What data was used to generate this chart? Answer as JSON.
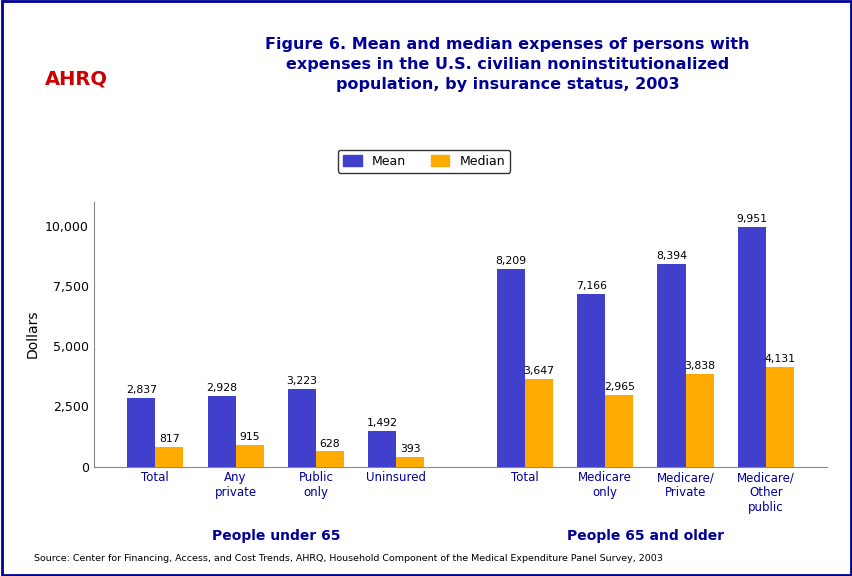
{
  "title_line1": "Figure 6. Mean and median expenses of persons with",
  "title_line2": "expenses in the U.S. civilian noninstitutionalized",
  "title_line3": "population, by insurance status, 2003",
  "ylabel": "Dollars",
  "source": "Source: Center for Financing, Access, and Cost Trends, AHRQ, Household Component of the Medical Expenditure Panel Survey, 2003",
  "categories": [
    "Total",
    "Any\nprivate",
    "Public\nonly",
    "Uninsured",
    "Total",
    "Medicare\nonly",
    "Medicare/\nPrivate",
    "Medicare/\nOther\npublic"
  ],
  "mean_values": [
    2837,
    2928,
    3223,
    1492,
    8209,
    7166,
    8394,
    9951
  ],
  "median_values": [
    817,
    915,
    628,
    393,
    3647,
    2965,
    3838,
    4131
  ],
  "mean_color": "#4040CC",
  "median_color": "#FFAA00",
  "bar_width": 0.35,
  "ylim": [
    0,
    11000
  ],
  "yticks": [
    0,
    2500,
    5000,
    7500,
    10000
  ],
  "ytick_labels": [
    "0",
    "2,500",
    "5,000",
    "7,500",
    "10,000"
  ],
  "group1_label": "People under 65",
  "group2_label": "People 65 and older",
  "legend_mean": "Mean",
  "legend_median": "Median",
  "bg_color": "#FFFFFF",
  "plot_bg_color": "#FFFFFF",
  "title_color": "#000099",
  "label_color": "#000099",
  "header_bg": "#FFFFFF",
  "border_color": "#000099",
  "divider_color": "#000099",
  "x_positions": [
    0,
    1,
    2,
    3,
    4.6,
    5.6,
    6.6,
    7.6
  ]
}
